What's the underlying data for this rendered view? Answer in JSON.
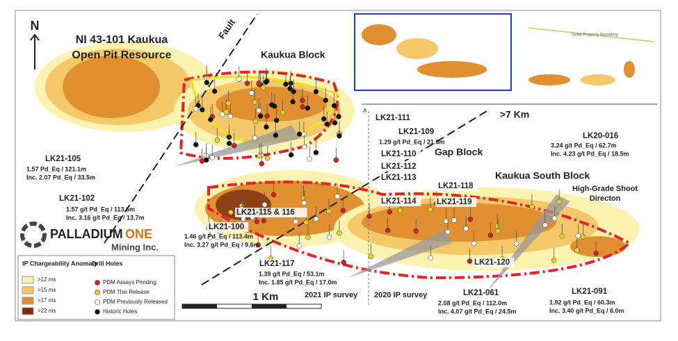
{
  "north": "N",
  "resource": {
    "lines": [
      "NI 43-101 Kaukua",
      "Open Pit Resource"
    ]
  },
  "fault": "Fault",
  "blocks": [
    "Kaukua Block",
    "Gap Block",
    "Kaukua South Block"
  ],
  "shoot": {
    "lines": [
      "High-Grade Shoot",
      "Directon"
    ]
  },
  "inset": {
    "boundary": "Outer Property Boundary",
    "span": ">7 Km",
    "section": "A"
  },
  "holes": [
    {
      "name": "LK21-111",
      "details": []
    },
    {
      "name": "LK21-109",
      "details": [
        "1.29 g/t Pd_Eq / 21.6m"
      ]
    },
    {
      "name": "LK21-110",
      "details": []
    },
    {
      "name": "LK21-112",
      "details": []
    },
    {
      "name": "LK21-113",
      "details": []
    },
    {
      "name": "LK21-118",
      "details": []
    },
    {
      "name": "LK21-114",
      "details": []
    },
    {
      "name": "LK21-119",
      "details": []
    },
    {
      "name": "LK20-016",
      "details": [
        "3.24 g/t Pd_Eq / 62.7m",
        "Inc. 4.23 g/t Pd_Eq / 18.5m"
      ]
    },
    {
      "name": "LK21-105",
      "details": [
        "1.57 Pd_Eq / 121.1m",
        "Inc. 2.07 Pd_Eq / 33.5m"
      ]
    },
    {
      "name": "LK21-102",
      "details": [
        "1.57 g/t Pd_Eq / 113.6m",
        "Inc. 3.16 g/t Pd_Eq / 13.7m"
      ]
    },
    {
      "name": "LK21-115 & 116",
      "details": []
    },
    {
      "name": "LK21-100",
      "details": [
        "1.46 g/t Pd_Eq / 113.4m",
        "Inc. 3.27 g/t Pd_Eq / 9.6m"
      ]
    },
    {
      "name": "LK21-117",
      "details": [
        "1.39 g/t Pd_Eq / 53.1m",
        "Inc.  1.85 g/t Pd_Eq / 17.0m"
      ]
    },
    {
      "name": "LK21-120",
      "details": []
    },
    {
      "name": "LK21-061",
      "details": [
        "2.08 g/t Pd_Eq / 112.0m",
        "Inc. 4.07 g/t Pd_Eq / 24.5m"
      ]
    },
    {
      "name": "LK21-091",
      "details": [
        "1.92 g/t Pd_Eq / 60.3m",
        "Inc. 3.40 g/t Pd_Eq / 6.0m"
      ]
    }
  ],
  "surveys": [
    "2021 IP survey",
    "2020 IP survey"
  ],
  "scale": "1 Km",
  "logo": {
    "name": "PALLADIUM",
    "accent": "ONE",
    "sub": "Mining Inc."
  },
  "legend": {
    "chargeability": {
      "title": "IP Chargeability Anomaly",
      "items": [
        ">12 ms",
        ">15 ms",
        ">17 ms",
        ">22 ms"
      ]
    },
    "drill": {
      "title": "Drill Holes",
      "items": [
        "PDM Assays Pending",
        "PDM This Release",
        "PDM Previously Released",
        "Historic Holes"
      ]
    }
  }
}
